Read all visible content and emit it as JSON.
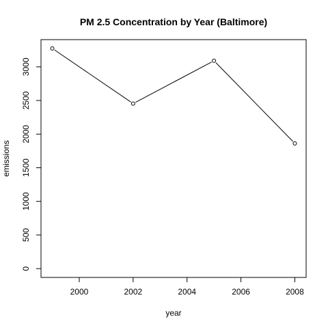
{
  "chart_data": {
    "type": "line",
    "title": "PM 2.5 Concentration by Year (Baltimore)",
    "xlabel": "year",
    "ylabel": "emissions",
    "x": [
      1999,
      2002,
      2005,
      2008
    ],
    "series": [
      {
        "values": [
          3274,
          2454,
          3091,
          1862
        ]
      }
    ],
    "xticks": [
      2000,
      2002,
      2004,
      2006,
      2008
    ],
    "yticks": [
      0,
      500,
      1000,
      1500,
      2000,
      2500,
      3000
    ],
    "xlim": [
      1998.58,
      2008.42
    ],
    "ylim": [
      -131,
      3405
    ],
    "grid": false,
    "markers": "open-circle",
    "line_color": "#000000"
  }
}
